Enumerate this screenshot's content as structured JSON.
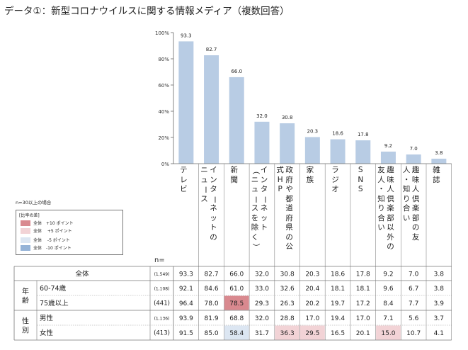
{
  "title": "データ①：新型コロナウイルスに関する情報メディア（複数回答）",
  "n_note": "n=30以上の場合",
  "n_label": "n=",
  "legend": {
    "title": "[比率の差]",
    "items": [
      {
        "label": "全体　+10 ポイント",
        "color": "#d9898f"
      },
      {
        "label": "全体　 +5 ポイント",
        "color": "#f2d3d6"
      },
      {
        "label": "全体　 -5 ポイント",
        "color": "#dce6f2"
      },
      {
        "label": "全体　-10 ポイント",
        "color": "#95b3d7"
      }
    ]
  },
  "chart_data": {
    "type": "bar",
    "categories": [
      "テレビ",
      "インターネットのニュース",
      "新聞",
      "インターネット（ニュースを除く）",
      "政府や都道府県の公式HP",
      "家族",
      "ラジオ",
      "SNS",
      "趣味人倶楽部以外の友人・知り合い",
      "趣味人倶楽部の友人・知り合い",
      "雑誌"
    ],
    "category_lines": [
      [
        "テレビ"
      ],
      [
        "インターネットの",
        "ニュース"
      ],
      [
        "新聞"
      ],
      [
        "インターネット",
        "（ニュースを除く）"
      ],
      [
        "政府や都道府県の公",
        "式HP"
      ],
      [
        "家族"
      ],
      [
        "ラジオ"
      ],
      [
        "SNS"
      ],
      [
        "趣味人倶楽部以外の",
        "友人・知り合い"
      ],
      [
        "趣味人倶楽部の友",
        "人・知り合い"
      ],
      [
        "雑誌"
      ]
    ],
    "values": [
      93.3,
      82.7,
      66.0,
      32.0,
      30.8,
      20.3,
      18.6,
      17.8,
      9.2,
      7.0,
      3.8
    ],
    "value_labels": [
      "93.3",
      "82.7",
      "66.0",
      "32.0",
      "30.8",
      "20.3",
      "18.6",
      "17.8",
      "9.2",
      "7.0",
      "3.8"
    ],
    "yticks": [
      "0%",
      "20%",
      "40%",
      "60%",
      "80%",
      "100%"
    ],
    "ylim": [
      0,
      100
    ],
    "bar_color": "#b8cce4",
    "grid": false
  },
  "table": {
    "rows": [
      {
        "group": "",
        "label": "全体",
        "n": "(1,549)",
        "values": [
          "93.3",
          "82.7",
          "66.0",
          "32.0",
          "30.8",
          "20.3",
          "18.6",
          "17.8",
          "9.2",
          "7.0",
          "3.8"
        ],
        "hl": [
          0,
          0,
          0,
          0,
          0,
          0,
          0,
          0,
          0,
          0,
          0
        ]
      },
      {
        "group": "年齢",
        "label": "60-74歳",
        "n": "(1,108)",
        "values": [
          "92.1",
          "84.6",
          "61.0",
          "33.0",
          "32.6",
          "20.4",
          "18.1",
          "18.1",
          "9.6",
          "6.7",
          "3.8"
        ],
        "hl": [
          0,
          0,
          0,
          0,
          0,
          0,
          0,
          0,
          0,
          0,
          0
        ]
      },
      {
        "group": "",
        "label": "75歳以上",
        "n": "(441)",
        "values": [
          "96.4",
          "78.0",
          "78.5",
          "29.3",
          "26.3",
          "20.2",
          "19.7",
          "17.2",
          "8.4",
          "7.7",
          "3.9"
        ],
        "hl": [
          0,
          0,
          2,
          0,
          0,
          0,
          0,
          0,
          0,
          0,
          0
        ]
      },
      {
        "group": "性別",
        "label": "男性",
        "n": "(1,136)",
        "values": [
          "93.9",
          "81.9",
          "68.8",
          "32.0",
          "28.8",
          "17.0",
          "19.4",
          "17.0",
          "7.1",
          "5.6",
          "3.7"
        ],
        "hl": [
          0,
          0,
          0,
          0,
          0,
          0,
          0,
          0,
          0,
          0,
          0
        ]
      },
      {
        "group": "",
        "label": "女性",
        "n": "(413)",
        "values": [
          "91.5",
          "85.0",
          "58.4",
          "31.7",
          "36.3",
          "29.5",
          "16.5",
          "20.1",
          "15.0",
          "10.7",
          "4.1"
        ],
        "hl": [
          0,
          0,
          -1,
          0,
          1,
          1,
          0,
          0,
          1,
          0,
          0
        ]
      }
    ]
  }
}
